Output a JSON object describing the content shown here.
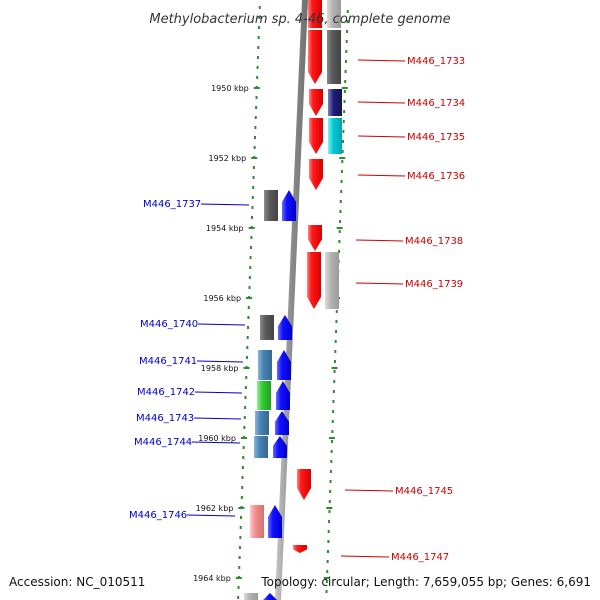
{
  "title": "Methylobacterium sp. 4-46, complete genome",
  "footer": {
    "accession": "Accession: NC_010511",
    "info": "Topology: circular; Length: 7,659,055 bp; Genes: 6,691"
  },
  "colors": {
    "scale_dots": "#2e8b2e",
    "backbone": "#8c8c8c",
    "forward": "#ff0000",
    "reverse": "#0000ff",
    "forward_label": "#cc0000",
    "reverse_label": "#0000cc",
    "dark_gray": "#5a5a5a",
    "light_gray": "#b4b4b4",
    "cyan": "#00c8d2",
    "steel_blue": "#4682b4",
    "navy": "#1e1e78",
    "green": "#32c832",
    "pink": "#f08c8c"
  },
  "ticks": [
    "1950 kbp",
    "1952 kbp",
    "1954 kbp",
    "1956 kbp",
    "1958 kbp",
    "1960 kbp",
    "1962 kbp",
    "1964 kbp"
  ],
  "genes": [
    {
      "id": "M446_1733",
      "strand": "forward",
      "labeled": true,
      "cog": "dark_gray"
    },
    {
      "id": "M446_1734",
      "strand": "forward",
      "labeled": true,
      "cog": "navy"
    },
    {
      "id": "M446_1735",
      "strand": "forward",
      "labeled": true,
      "cog": "cyan"
    },
    {
      "id": "M446_1736",
      "strand": "forward",
      "labeled": true,
      "cog": ""
    },
    {
      "id": "M446_1737",
      "strand": "reverse",
      "labeled": true,
      "cog": "dark_gray"
    },
    {
      "id": "M446_1738",
      "strand": "forward",
      "labeled": true,
      "cog": ""
    },
    {
      "id": "M446_1739",
      "strand": "forward",
      "labeled": true,
      "cog": "light_gray"
    },
    {
      "id": "M446_1740",
      "strand": "reverse",
      "labeled": true,
      "cog": "dark_gray"
    },
    {
      "id": "M446_1741",
      "strand": "reverse",
      "labeled": true,
      "cog": "steel_blue"
    },
    {
      "id": "M446_1742",
      "strand": "reverse",
      "labeled": true,
      "cog": "green"
    },
    {
      "id": "M446_1743",
      "strand": "reverse",
      "labeled": true,
      "cog": "steel_blue"
    },
    {
      "id": "M446_1744",
      "strand": "reverse",
      "labeled": true,
      "cog": "steel_blue"
    },
    {
      "id": "M446_1745",
      "strand": "forward",
      "labeled": true,
      "cog": ""
    },
    {
      "id": "M446_1746",
      "strand": "reverse",
      "labeled": true,
      "cog": "pink"
    },
    {
      "id": "M446_1747",
      "strand": "forward",
      "labeled": true,
      "cog": ""
    }
  ]
}
